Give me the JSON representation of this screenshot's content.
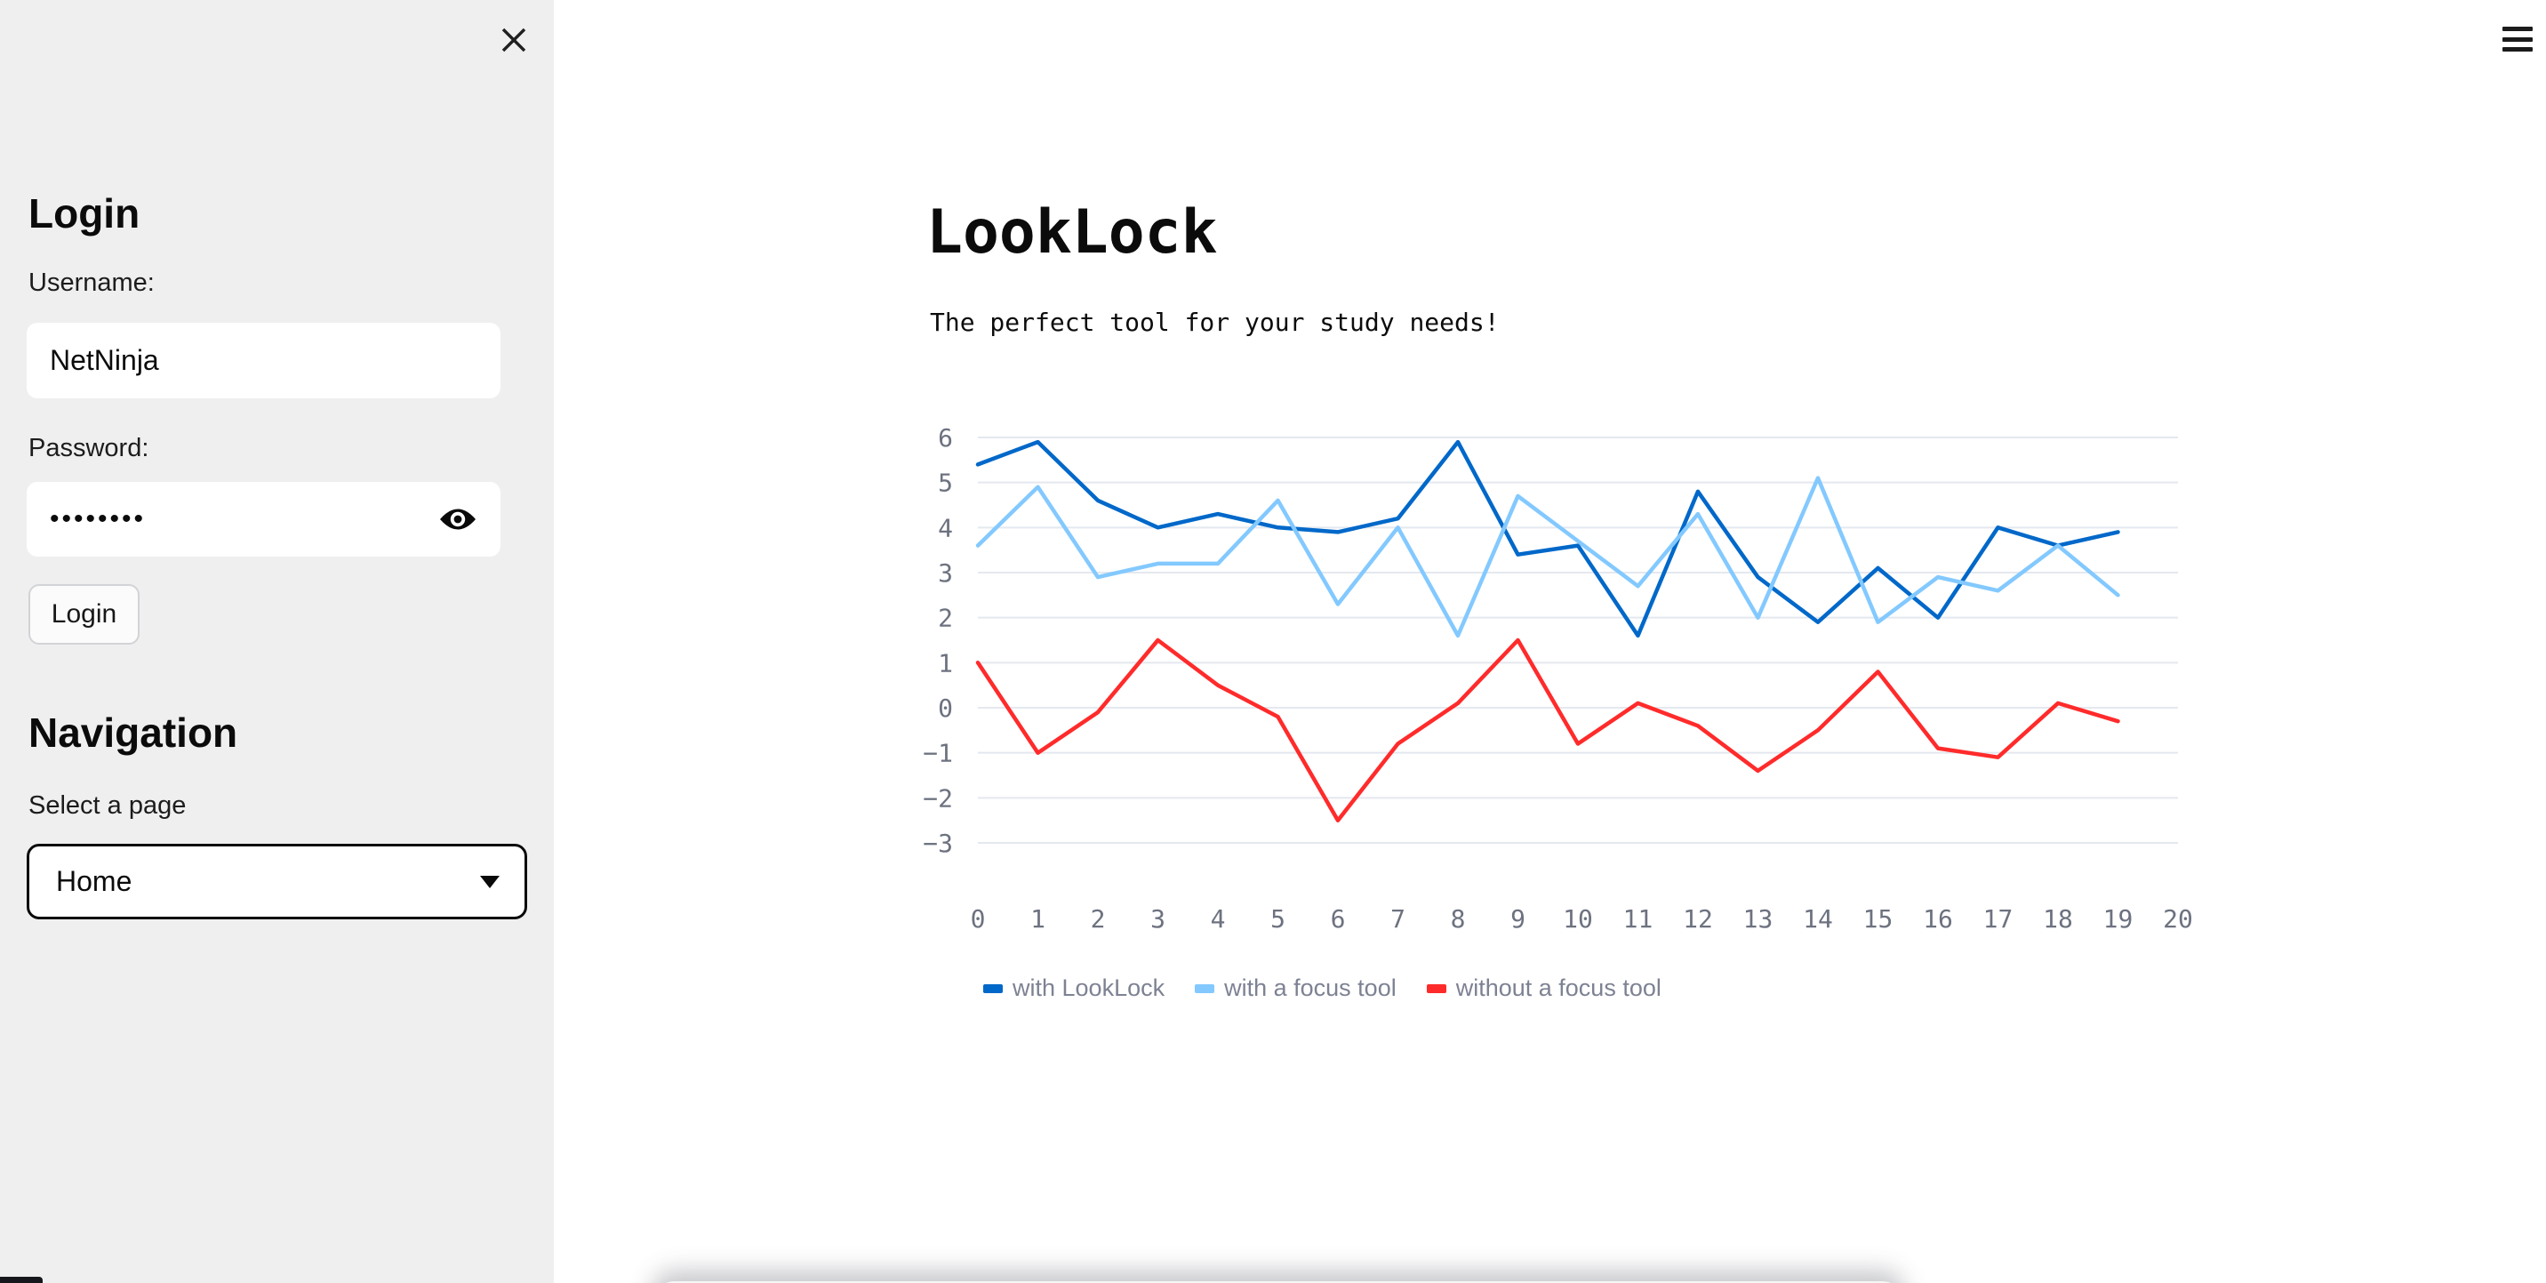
{
  "sidebar": {
    "login_heading": "Login",
    "username_label": "Username:",
    "username_value": "NetNinja",
    "password_label": "Password:",
    "password_value_masked": "••••••••",
    "login_button_label": "Login",
    "nav_heading": "Navigation",
    "select_label": "Select a page",
    "select_value": "Home"
  },
  "main": {
    "title": "LookLock",
    "subtitle": "The perfect tool for your study needs!"
  },
  "icons": {
    "close": "✕",
    "menu": "≡",
    "eye": "👁",
    "caret": "▼"
  },
  "colors": {
    "sidebar_bg": "#efeff0",
    "main_bg": "#ffffff",
    "grid": "#e4e8ef",
    "axis_label": "#6d7280",
    "legend_text": "#7d8293",
    "series_blue": "#0068c9",
    "series_lightblue": "#83c9ff",
    "series_red": "#ff2b2b"
  },
  "chart_data": {
    "type": "line",
    "title": "",
    "xlabel": "",
    "ylabel": "",
    "x": [
      0,
      1,
      2,
      3,
      4,
      5,
      6,
      7,
      8,
      9,
      10,
      11,
      12,
      13,
      14,
      15,
      16,
      17,
      18,
      19
    ],
    "x_ticks": [
      0,
      1,
      2,
      3,
      4,
      5,
      6,
      7,
      8,
      9,
      10,
      11,
      12,
      13,
      14,
      15,
      16,
      17,
      18,
      19,
      20
    ],
    "y_ticks": [
      6,
      5,
      4,
      3,
      2,
      1,
      0,
      -1,
      -2,
      -3
    ],
    "xlim": [
      0,
      20
    ],
    "ylim": [
      -3.4,
      6.4
    ],
    "grid": "horizontal",
    "legend_position": "bottom-left",
    "series": [
      {
        "name": "with LookLock",
        "color": "#0068c9",
        "values": [
          5.4,
          5.9,
          4.6,
          4.0,
          4.3,
          4.0,
          3.9,
          4.2,
          5.9,
          3.4,
          3.6,
          1.6,
          4.8,
          2.9,
          1.9,
          3.1,
          2.0,
          4.0,
          3.6,
          3.9
        ]
      },
      {
        "name": "with a focus tool",
        "color": "#83c9ff",
        "values": [
          3.6,
          4.9,
          2.9,
          3.2,
          3.2,
          4.6,
          2.3,
          4.0,
          1.6,
          4.7,
          3.7,
          2.7,
          4.3,
          2.0,
          5.1,
          1.9,
          2.9,
          2.6,
          3.6,
          2.5
        ]
      },
      {
        "name": "without a focus tool",
        "color": "#ff2b2b",
        "values": [
          1.0,
          -1.0,
          -0.1,
          1.5,
          0.5,
          -0.2,
          -2.5,
          -0.8,
          0.1,
          1.5,
          -0.8,
          0.1,
          -0.4,
          -1.4,
          -0.5,
          0.8,
          -0.9,
          -1.1,
          0.1,
          -0.3
        ]
      }
    ]
  }
}
